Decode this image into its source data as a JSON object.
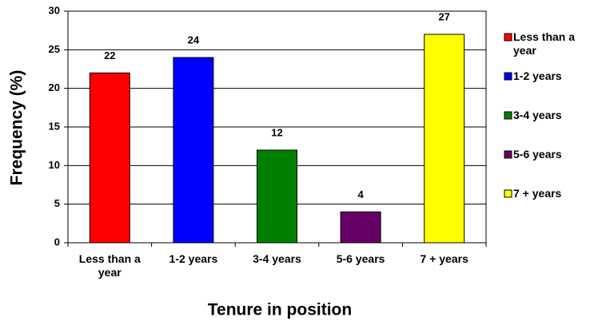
{
  "chart_data": {
    "type": "bar",
    "categories": [
      "Less than a year",
      "1-2 years",
      "3-4 years",
      "5-6 years",
      "7 + years"
    ],
    "values": [
      22,
      24,
      12,
      4,
      27
    ],
    "colors": [
      "#ff0000",
      "#0000ff",
      "#008000",
      "#660066",
      "#ffff00"
    ],
    "xlabel": "Tenure in position",
    "ylabel": "Frequency (%)",
    "ylim": [
      0,
      30
    ],
    "yticks": [
      0,
      5,
      10,
      15,
      20,
      25,
      30
    ],
    "grid": true,
    "legend": "right"
  }
}
